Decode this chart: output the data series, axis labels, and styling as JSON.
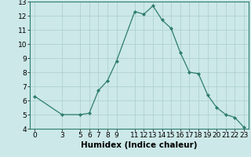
{
  "title": "",
  "xlabel": "Humidex (Indice chaleur)",
  "x": [
    0,
    3,
    5,
    6,
    7,
    8,
    9,
    11,
    12,
    13,
    14,
    15,
    16,
    17,
    18,
    19,
    20,
    21,
    22,
    23
  ],
  "y": [
    6.3,
    5.0,
    5.0,
    5.1,
    6.7,
    7.4,
    8.8,
    12.3,
    12.1,
    12.7,
    11.7,
    11.1,
    9.4,
    8.0,
    7.9,
    6.4,
    5.5,
    5.0,
    4.8,
    4.1
  ],
  "line_color": "#2e7d6e",
  "marker": "D",
  "marker_size": 2.0,
  "bg_color": "#cce8e8",
  "grid_color": "#aacece",
  "xlim": [
    -0.5,
    23.5
  ],
  "ylim": [
    4,
    13
  ],
  "yticks": [
    4,
    5,
    6,
    7,
    8,
    9,
    10,
    11,
    12,
    13
  ],
  "xticks": [
    0,
    3,
    5,
    6,
    7,
    8,
    9,
    11,
    12,
    13,
    14,
    15,
    16,
    17,
    18,
    19,
    20,
    21,
    22,
    23
  ],
  "tick_fontsize": 6.5,
  "label_fontsize": 7.5
}
